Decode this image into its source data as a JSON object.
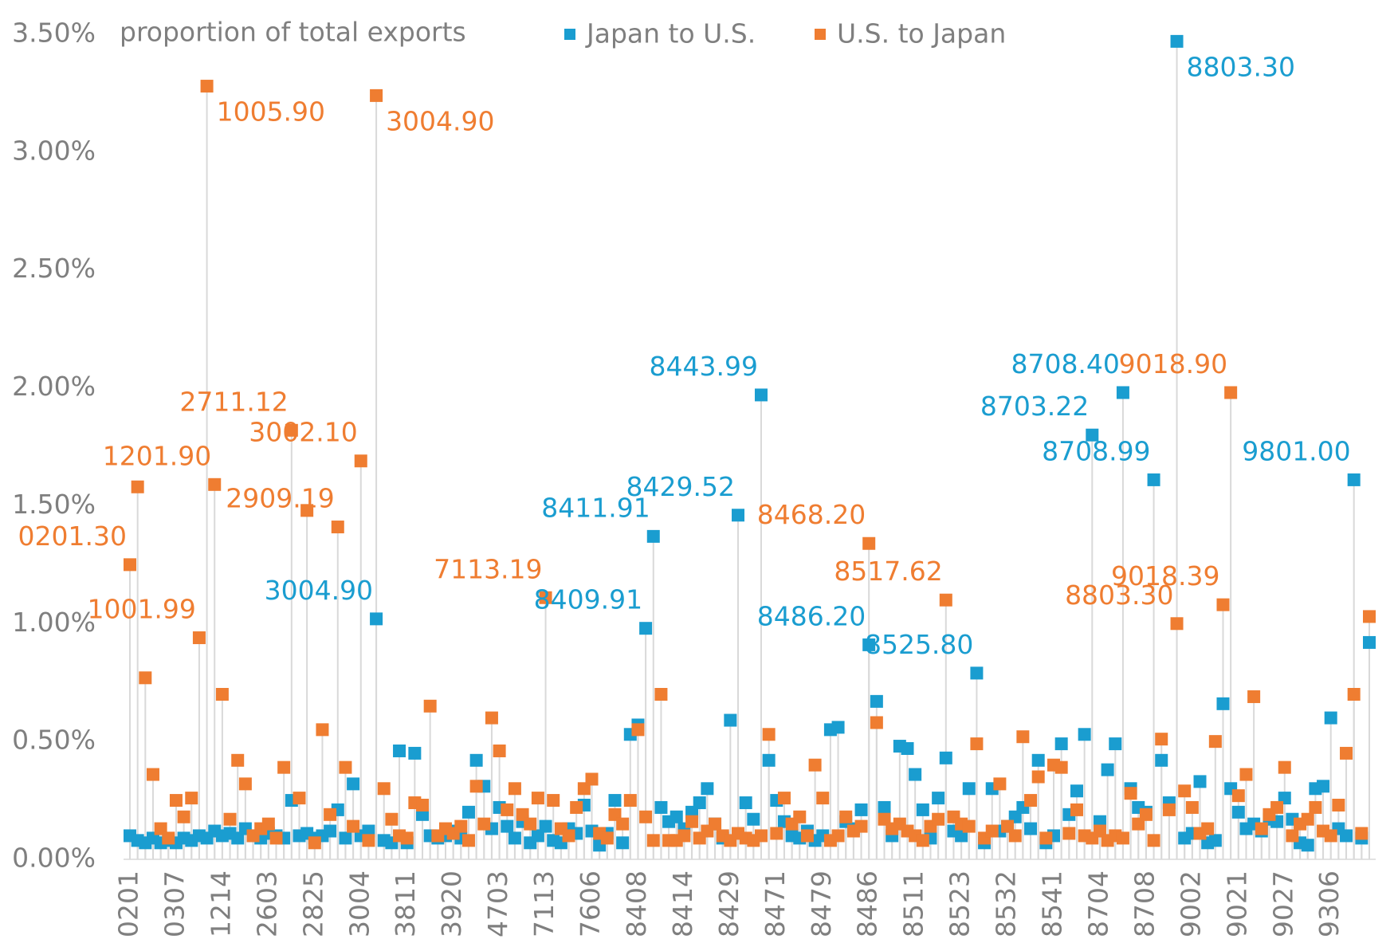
{
  "chart_data": {
    "type": "scatter",
    "title": "proportion of total exports",
    "categories": [
      "0201",
      null,
      null,
      null,
      null,
      null,
      "0307",
      null,
      null,
      null,
      null,
      null,
      "1214",
      null,
      null,
      null,
      null,
      null,
      "2603",
      null,
      null,
      null,
      null,
      null,
      "2825",
      null,
      null,
      null,
      null,
      null,
      "3004",
      null,
      null,
      null,
      null,
      null,
      "3811",
      null,
      null,
      null,
      null,
      null,
      "3920",
      null,
      null,
      null,
      null,
      null,
      "4703",
      null,
      null,
      null,
      null,
      null,
      "7113",
      null,
      null,
      null,
      null,
      null,
      "7606",
      null,
      null,
      null,
      null,
      null,
      "8408",
      null,
      null,
      null,
      null,
      null,
      "8414",
      null,
      null,
      null,
      null,
      null,
      "8429",
      null,
      null,
      null,
      null,
      null,
      "8471",
      null,
      null,
      null,
      null,
      null,
      "8479",
      null,
      null,
      null,
      null,
      null,
      "8486",
      null,
      null,
      null,
      null,
      null,
      "8511",
      null,
      null,
      null,
      null,
      null,
      "8523",
      null,
      null,
      null,
      null,
      null,
      "8532",
      null,
      null,
      null,
      null,
      null,
      "8541",
      null,
      null,
      null,
      null,
      null,
      "8704",
      null,
      null,
      null,
      null,
      null,
      "8708",
      null,
      null,
      null,
      null,
      null,
      "9002",
      null,
      null,
      null,
      null,
      null,
      "9021",
      null,
      null,
      null,
      null,
      null,
      "9027",
      null,
      null,
      null,
      null,
      null,
      "9306",
      null,
      null,
      null,
      null,
      null
    ],
    "series": [
      {
        "name": "Japan to U.S.",
        "color": "#1a9dd0",
        "values": [
          0.1,
          0.08,
          0.07,
          0.09,
          0.07,
          0.08,
          0.07,
          0.09,
          0.08,
          0.1,
          0.09,
          0.12,
          0.1,
          0.11,
          0.09,
          0.13,
          0.1,
          0.09,
          0.11,
          0.1,
          0.09,
          0.25,
          0.1,
          0.11,
          0.09,
          0.1,
          0.12,
          0.21,
          0.09,
          0.32,
          0.1,
          0.12,
          1.02,
          0.08,
          0.07,
          0.46,
          0.07,
          0.45,
          0.19,
          0.1,
          0.09,
          0.1,
          0.12,
          0.09,
          0.2,
          0.42,
          0.31,
          0.13,
          0.22,
          0.14,
          0.09,
          0.16,
          0.07,
          0.1,
          0.14,
          0.08,
          0.07,
          0.13,
          0.11,
          0.23,
          0.12,
          0.06,
          0.11,
          0.25,
          0.07,
          0.53,
          0.57,
          0.98,
          1.37,
          0.22,
          0.16,
          0.18,
          0.13,
          0.2,
          0.24,
          0.3,
          0.15,
          0.09,
          0.59,
          1.46,
          0.24,
          0.17,
          1.97,
          0.42,
          0.25,
          0.16,
          0.1,
          0.09,
          0.12,
          0.08,
          0.1,
          0.55,
          0.56,
          0.16,
          0.13,
          0.21,
          0.91,
          0.67,
          0.22,
          0.1,
          0.48,
          0.47,
          0.36,
          0.21,
          0.09,
          0.26,
          0.43,
          0.12,
          0.1,
          0.3,
          0.79,
          0.07,
          0.3,
          0.12,
          0.14,
          0.18,
          0.22,
          0.13,
          0.42,
          0.07,
          0.1,
          0.49,
          0.19,
          0.29,
          0.53,
          1.8,
          0.16,
          0.38,
          0.49,
          1.98,
          0.3,
          0.22,
          0.2,
          1.61,
          0.42,
          0.24,
          3.47,
          0.09,
          0.11,
          0.33,
          0.07,
          0.08,
          0.66,
          0.3,
          0.2,
          0.13,
          0.15,
          0.12,
          0.17,
          0.16,
          0.26,
          0.17,
          0.07,
          0.06,
          0.3,
          0.31,
          0.6,
          0.13,
          0.1,
          1.61,
          0.09,
          0.92
        ],
        "point_labels": {
          "32": "3004.90",
          "67": "8409.91",
          "68": "8411.91",
          "79": "8429.52",
          "82": "8443.99",
          "96": "8486.20",
          "110": "8525.80",
          "125": "8703.22",
          "129": "8708.40",
          "133": "8708.99",
          "136": "8803.30",
          "159": "9801.00"
        }
      },
      {
        "name": "U.S. to Japan",
        "color": "#ef7d31",
        "values": [
          1.25,
          1.58,
          0.77,
          0.36,
          0.13,
          0.09,
          0.25,
          0.18,
          0.26,
          0.94,
          3.28,
          1.59,
          0.7,
          0.17,
          0.42,
          0.32,
          0.1,
          0.13,
          0.15,
          0.09,
          0.39,
          1.82,
          0.26,
          1.48,
          0.07,
          0.55,
          0.19,
          1.41,
          0.39,
          0.14,
          1.69,
          0.08,
          3.24,
          0.3,
          0.17,
          0.1,
          0.09,
          0.24,
          0.23,
          0.65,
          0.1,
          0.13,
          0.11,
          0.14,
          0.08,
          0.31,
          0.15,
          0.6,
          0.46,
          0.21,
          0.3,
          0.19,
          0.15,
          0.26,
          1.11,
          0.25,
          0.13,
          0.1,
          0.22,
          0.3,
          0.34,
          0.11,
          0.09,
          0.19,
          0.15,
          0.25,
          0.55,
          0.18,
          0.08,
          0.7,
          0.08,
          0.08,
          0.1,
          0.16,
          0.09,
          0.12,
          0.15,
          0.1,
          0.08,
          0.11,
          0.09,
          0.08,
          0.1,
          0.53,
          0.11,
          0.26,
          0.15,
          0.18,
          0.1,
          0.4,
          0.26,
          0.08,
          0.1,
          0.18,
          0.12,
          0.14,
          1.34,
          0.58,
          0.17,
          0.13,
          0.15,
          0.12,
          0.1,
          0.08,
          0.14,
          0.17,
          1.1,
          0.18,
          0.15,
          0.14,
          0.49,
          0.09,
          0.12,
          0.32,
          0.14,
          0.1,
          0.52,
          0.25,
          0.35,
          0.09,
          0.4,
          0.39,
          0.11,
          0.21,
          0.1,
          0.09,
          0.12,
          0.08,
          0.1,
          0.09,
          0.28,
          0.15,
          0.19,
          0.08,
          0.51,
          0.21,
          1.0,
          0.29,
          0.22,
          0.11,
          0.13,
          0.5,
          1.08,
          1.98,
          0.27,
          0.36,
          0.69,
          0.13,
          0.19,
          0.22,
          0.39,
          0.1,
          0.15,
          0.17,
          0.22,
          0.12,
          0.1,
          0.23,
          0.45,
          0.7,
          0.11,
          1.03
        ],
        "point_labels": {
          "0": "0201.30",
          "9": "1001.99",
          "10": "1005.90",
          "11": "1201.90",
          "21": "2711.12",
          "27": "2909.19",
          "30": "3002.10",
          "32": "3004.90",
          "54": "7113.19",
          "96": "8468.20",
          "106": "8517.62",
          "136": "8803.30",
          "142": "9018.39",
          "143": "9018.90"
        }
      }
    ],
    "ylim": [
      0,
      3.5
    ],
    "yticks": [
      {
        "value": 0,
        "label": "0.00%"
      },
      {
        "value": 0.5,
        "label": "0.50%"
      },
      {
        "value": 1,
        "label": "1.00%"
      },
      {
        "value": 1.5,
        "label": "1.50%"
      },
      {
        "value": 2,
        "label": "2.00%"
      },
      {
        "value": 2.5,
        "label": "2.50%"
      },
      {
        "value": 3,
        "label": "3.00%"
      },
      {
        "value": 3.5,
        "label": "3.50%"
      }
    ],
    "stem_color": "#d9d9d9"
  }
}
